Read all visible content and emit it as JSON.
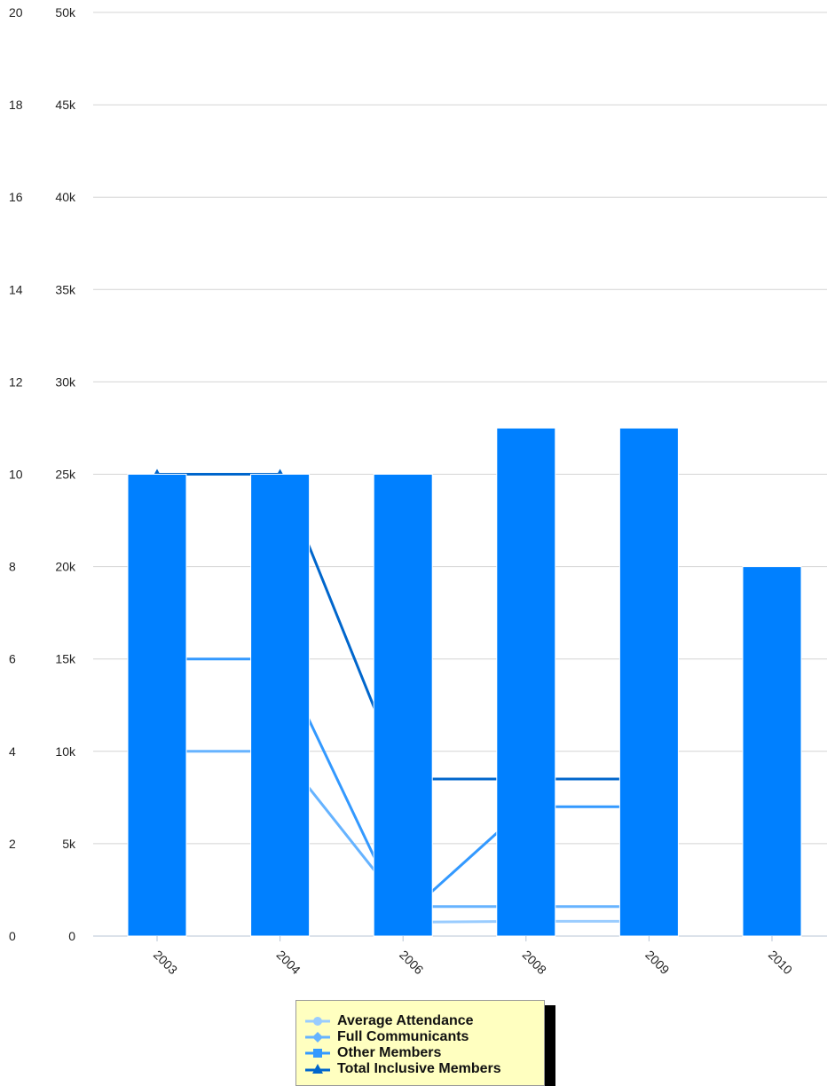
{
  "chart_data": {
    "type": "bar",
    "categories": [
      "2003",
      "2004",
      "2006",
      "2008",
      "2009",
      "2010"
    ],
    "bar_series": {
      "axis": "left",
      "values": [
        10,
        10,
        10,
        11,
        11,
        8
      ],
      "color": "#0080ff"
    },
    "series": [
      {
        "name": "Average Attendance",
        "type": "line",
        "axis": "right",
        "color": "#99ccff",
        "marker": "circle",
        "values": [
          null,
          null,
          750,
          800,
          800,
          null
        ]
      },
      {
        "name": "Full Communicants",
        "type": "line",
        "axis": "right",
        "color": "#66b3ff",
        "marker": "diamond",
        "values": [
          10000,
          10000,
          1600,
          1600,
          1600,
          null
        ]
      },
      {
        "name": "Other Members",
        "type": "line",
        "axis": "right",
        "color": "#3399ff",
        "marker": "square",
        "values": [
          15000,
          15000,
          1000,
          7000,
          7000,
          null
        ]
      },
      {
        "name": "Total Inclusive Members",
        "type": "line",
        "axis": "right",
        "color": "#0066cc",
        "marker": "triangle",
        "values": [
          25000,
          25000,
          8500,
          8500,
          8500,
          null
        ]
      }
    ],
    "left_axis": {
      "ticks": [
        "0",
        "2",
        "4",
        "6",
        "8",
        "10",
        "12",
        "14",
        "16",
        "18",
        "20"
      ],
      "range": [
        0,
        20
      ]
    },
    "right_axis": {
      "ticks": [
        "0",
        "5k",
        "10k",
        "15k",
        "20k",
        "25k",
        "30k",
        "35k",
        "40k",
        "45k",
        "50k"
      ],
      "range": [
        0,
        50000
      ]
    },
    "grid": true,
    "legend_position": "bottom"
  }
}
